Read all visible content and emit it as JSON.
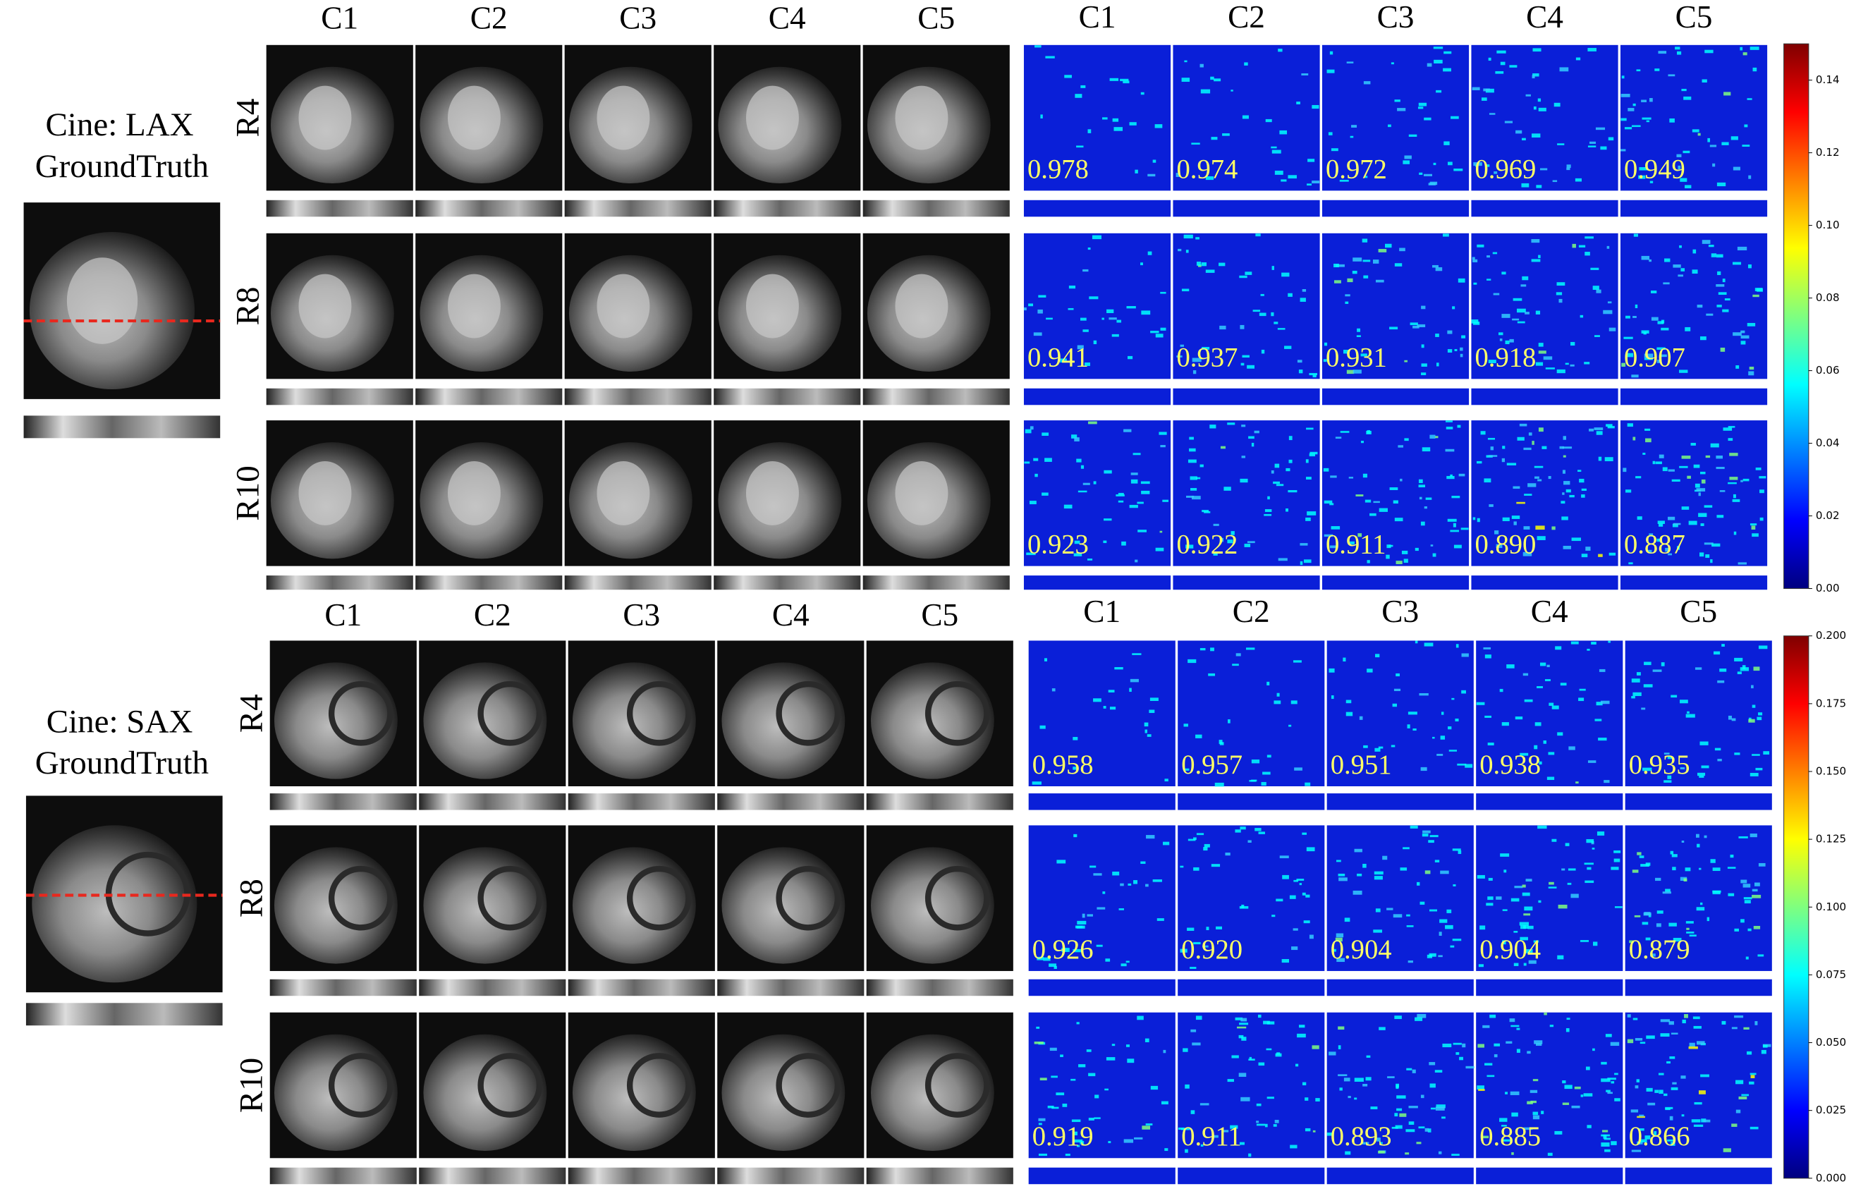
{
  "panels": [
    {
      "ground_truth": {
        "title": "Cine: LAX",
        "subtitle": "GroundTruth"
      },
      "columns": [
        "C1",
        "C2",
        "C3",
        "C4",
        "C5"
      ],
      "error_columns": [
        "C1",
        "C2",
        "C3",
        "C4",
        "C5"
      ],
      "rows": [
        {
          "label": "R4",
          "ssim": [
            "0.978",
            "0.974",
            "0.972",
            "0.969",
            "0.949"
          ]
        },
        {
          "label": "R8",
          "ssim": [
            "0.941",
            "0.937",
            "0.931",
            "0.918",
            "0.907"
          ]
        },
        {
          "label": "R10",
          "ssim": [
            "0.923",
            "0.922",
            "0.911",
            "0.890",
            "0.887"
          ]
        }
      ],
      "colorbar": {
        "range": [
          0,
          0.15
        ],
        "ticks": [
          {
            "value": 0,
            "label": "0.00"
          },
          {
            "value": 0.02,
            "label": "0.02"
          },
          {
            "value": 0.04,
            "label": "0.04"
          },
          {
            "value": 0.06,
            "label": "0.06"
          },
          {
            "value": 0.08,
            "label": "0.08"
          },
          {
            "value": 0.1,
            "label": "0.10"
          },
          {
            "value": 0.12,
            "label": "0.12"
          },
          {
            "value": 0.14,
            "label": "0.14"
          }
        ]
      }
    },
    {
      "ground_truth": {
        "title": "Cine: SAX",
        "subtitle": "GroundTruth"
      },
      "columns": [
        "C1",
        "C2",
        "C3",
        "C4",
        "C5"
      ],
      "error_columns": [
        "C1",
        "C2",
        "C3",
        "C4",
        "C5"
      ],
      "rows": [
        {
          "label": "R4",
          "ssim": [
            "0.958",
            "0.957",
            "0.951",
            "0.938",
            "0.935"
          ]
        },
        {
          "label": "R8",
          "ssim": [
            "0.926",
            "0.920",
            "0.904",
            "0.904",
            "0.879"
          ]
        },
        {
          "label": "R10",
          "ssim": [
            "0.919",
            "0.911",
            "0.893",
            "0.885",
            "0.866"
          ]
        }
      ],
      "colorbar": {
        "range": [
          0,
          0.2
        ],
        "ticks": [
          {
            "value": 0,
            "label": "0.000"
          },
          {
            "value": 0.025,
            "label": "0.025"
          },
          {
            "value": 0.05,
            "label": "0.050"
          },
          {
            "value": 0.075,
            "label": "0.075"
          },
          {
            "value": 0.1,
            "label": "0.100"
          },
          {
            "value": 0.125,
            "label": "0.125"
          },
          {
            "value": 0.15,
            "label": "0.150"
          },
          {
            "value": 0.175,
            "label": "0.175"
          },
          {
            "value": 0.2,
            "label": "0.200"
          }
        ]
      }
    }
  ]
}
